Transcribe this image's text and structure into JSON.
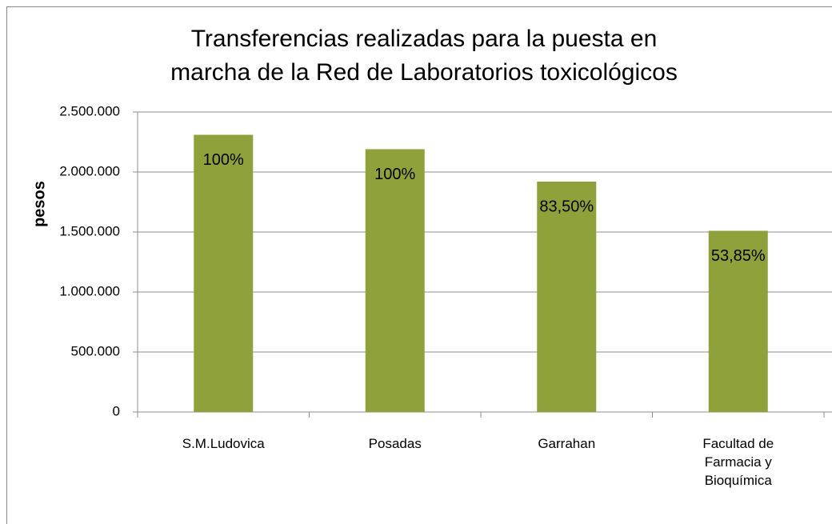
{
  "chart_data": {
    "type": "bar",
    "title": [
      "Transferencias realizadas para la puesta en",
      "marcha de la Red de Laboratorios toxicológicos"
    ],
    "y_label": "pesos",
    "categories": [
      "S.M.Ludovica",
      "Posadas",
      "Garrahan",
      "Facultad de Farmacia y Bioquímica"
    ],
    "values": [
      2310000,
      2190000,
      1920000,
      1510000
    ],
    "annotations": [
      "100%",
      "100%",
      "83,50%",
      "53,85%"
    ],
    "color": "#8ea13a",
    "ylim": [
      0,
      2500000
    ],
    "yticks": [
      0,
      {
        "value": 500000,
        "label": "500.000"
      },
      {
        "value": 1000000,
        "label": "1.000.000"
      },
      {
        "value": 1500000,
        "label": "1.500.000"
      },
      {
        "value": 2000000,
        "label": "2.000.000"
      },
      {
        "value": 2500000,
        "label": "2.500.000"
      }
    ],
    "grid": true
  }
}
